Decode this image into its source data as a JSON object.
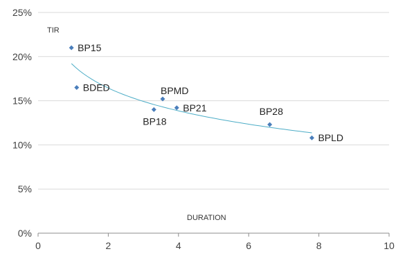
{
  "chart_data": {
    "type": "scatter",
    "title": "",
    "xlabel": "DURATION",
    "ylabel": "TIR",
    "xlim": [
      0,
      10
    ],
    "ylim": [
      0,
      25
    ],
    "x_ticks": [
      0,
      2,
      4,
      6,
      8,
      10
    ],
    "y_ticks": [
      0,
      5,
      10,
      15,
      20,
      25
    ],
    "y_tick_labels": [
      "0%",
      "5%",
      "10%",
      "15%",
      "20%",
      "25%"
    ],
    "grid": "horizontal",
    "legend": "none",
    "marker_color": "#4a7ebb",
    "trendline_color": "#4bacc6",
    "trendline": {
      "type": "logarithmic",
      "x_range": [
        0.95,
        7.8
      ]
    },
    "points": [
      {
        "label": "BP15",
        "x": 0.95,
        "y": 21.0
      },
      {
        "label": "BDED",
        "x": 1.1,
        "y": 16.5
      },
      {
        "label": "BP18",
        "x": 3.3,
        "y": 14.0
      },
      {
        "label": "BPMD",
        "x": 3.55,
        "y": 15.2
      },
      {
        "label": "BP21",
        "x": 3.95,
        "y": 14.2
      },
      {
        "label": "BP28",
        "x": 6.6,
        "y": 12.3
      },
      {
        "label": "BPLD",
        "x": 7.8,
        "y": 10.8
      }
    ]
  }
}
